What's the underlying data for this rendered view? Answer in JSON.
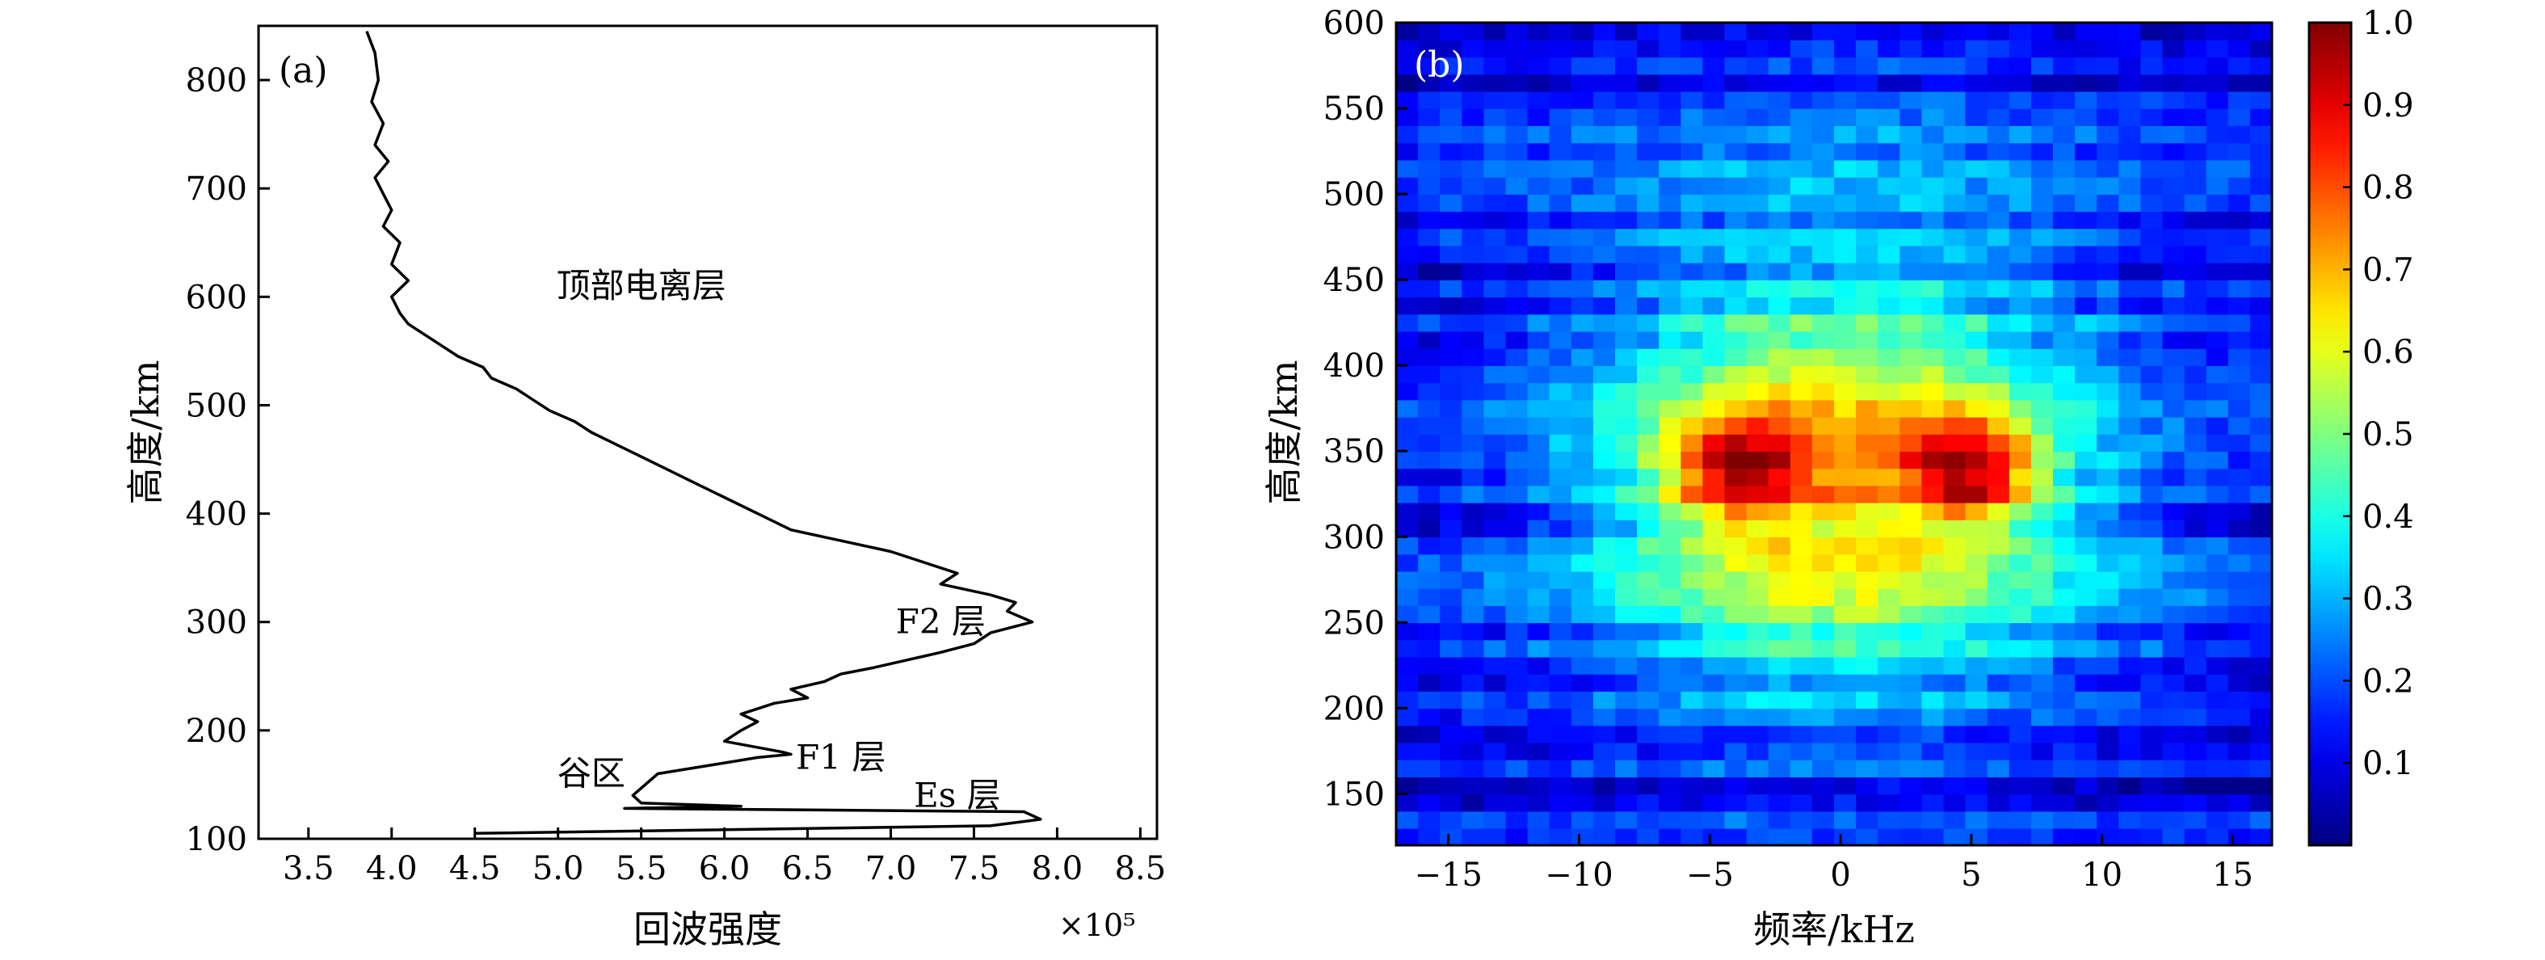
{
  "chart_data": [
    {
      "panel_label": "(a)",
      "type": "line",
      "xlabel": "回波强度",
      "ylabel": "高度/km",
      "x_multiplier_label": "×10⁵",
      "xlim": [
        3.2,
        8.6
      ],
      "ylim": [
        100,
        850
      ],
      "xticks": [
        3.5,
        4.0,
        4.5,
        5.0,
        5.5,
        6.0,
        6.5,
        7.0,
        7.5,
        8.0,
        8.5
      ],
      "xtick_labels": [
        "3.5",
        "4.0",
        "4.5",
        "5.0",
        "5.5",
        "6.0",
        "6.5",
        "7.0",
        "7.5",
        "8.0",
        "8.5"
      ],
      "yticks": [
        100,
        200,
        300,
        400,
        500,
        600,
        700,
        800
      ],
      "ytick_labels": [
        "100",
        "200",
        "300",
        "400",
        "500",
        "600",
        "700",
        "800"
      ],
      "line_color": "#000000",
      "series": [
        {
          "x": [
            4.5,
            7.6,
            7.9,
            7.8,
            5.4,
            6.1,
            5.5,
            5.45,
            5.6,
            6.0,
            6.2,
            6.4,
            6.35,
            6.0,
            6.1,
            6.2,
            6.1,
            6.3,
            6.5,
            6.4,
            6.6,
            6.7,
            6.9,
            7.1,
            7.3,
            7.5,
            7.6,
            7.85,
            7.7,
            7.75,
            7.6,
            7.3,
            7.4,
            7.2,
            7.0,
            6.7,
            6.4,
            6.2,
            6.0,
            5.8,
            5.6,
            5.4,
            5.2,
            5.1,
            4.95,
            4.85,
            4.75,
            4.6,
            4.55,
            4.4,
            4.3,
            4.2,
            4.1,
            4.05,
            4.0,
            4.1,
            4.0,
            4.05,
            3.95,
            4.0,
            3.95,
            3.9,
            3.98,
            3.9,
            3.95,
            3.88,
            3.92,
            3.9,
            3.85
          ],
          "y": [
            105,
            112,
            118,
            125,
            128,
            130,
            133,
            140,
            160,
            170,
            175,
            178,
            180,
            190,
            200,
            208,
            215,
            225,
            230,
            238,
            245,
            252,
            258,
            265,
            272,
            280,
            290,
            300,
            310,
            318,
            325,
            335,
            345,
            355,
            365,
            375,
            385,
            400,
            415,
            430,
            445,
            460,
            475,
            485,
            495,
            505,
            515,
            525,
            535,
            545,
            555,
            565,
            575,
            585,
            600,
            615,
            630,
            650,
            665,
            680,
            695,
            710,
            725,
            740,
            760,
            780,
            800,
            825,
            845
          ]
        }
      ],
      "annotations": [
        {
          "text": "顶部电离层",
          "x": 5.5,
          "y": 610
        },
        {
          "text": "F2 层",
          "x": 7.3,
          "y": 300
        },
        {
          "text": "F1 层",
          "x": 6.7,
          "y": 175
        },
        {
          "text": "谷区",
          "x": 5.2,
          "y": 160
        },
        {
          "text": "Es 层",
          "x": 7.4,
          "y": 140
        }
      ]
    },
    {
      "panel_label": "(b)",
      "type": "heatmap",
      "xlabel": "频率/kHz",
      "ylabel": "高度/km",
      "xlim": [
        -17,
        16.5
      ],
      "ylim": [
        120,
        600
      ],
      "xticks": [
        -15,
        -10,
        -5,
        0,
        5,
        10,
        15
      ],
      "xtick_labels": [
        "−15",
        "−10",
        "−5",
        "0",
        "5",
        "10",
        "15"
      ],
      "yticks": [
        150,
        200,
        250,
        300,
        350,
        400,
        450,
        500,
        550,
        600
      ],
      "ytick_labels": [
        "150",
        "200",
        "250",
        "300",
        "350",
        "400",
        "450",
        "500",
        "550",
        "600"
      ],
      "colorbar": {
        "range": [
          0,
          1.0
        ],
        "ticks": [
          0.1,
          0.2,
          0.3,
          0.4,
          0.5,
          0.6,
          0.7,
          0.8,
          0.9,
          1.0
        ],
        "tick_labels": [
          "0.1",
          "0.2",
          "0.3",
          "0.4",
          "0.5",
          "0.6",
          "0.7",
          "0.8",
          "0.9",
          "1.0"
        ],
        "colormap": "jet"
      },
      "structure": {
        "peaks": [
          {
            "freq_khz": -4,
            "height_km": 340,
            "value": 0.92
          },
          {
            "freq_khz": 5,
            "height_km": 340,
            "value": 0.95
          }
        ],
        "band_center_km": 330,
        "band_width_km": 110,
        "freq_half_width_khz": 9,
        "background": 0.12
      }
    }
  ]
}
